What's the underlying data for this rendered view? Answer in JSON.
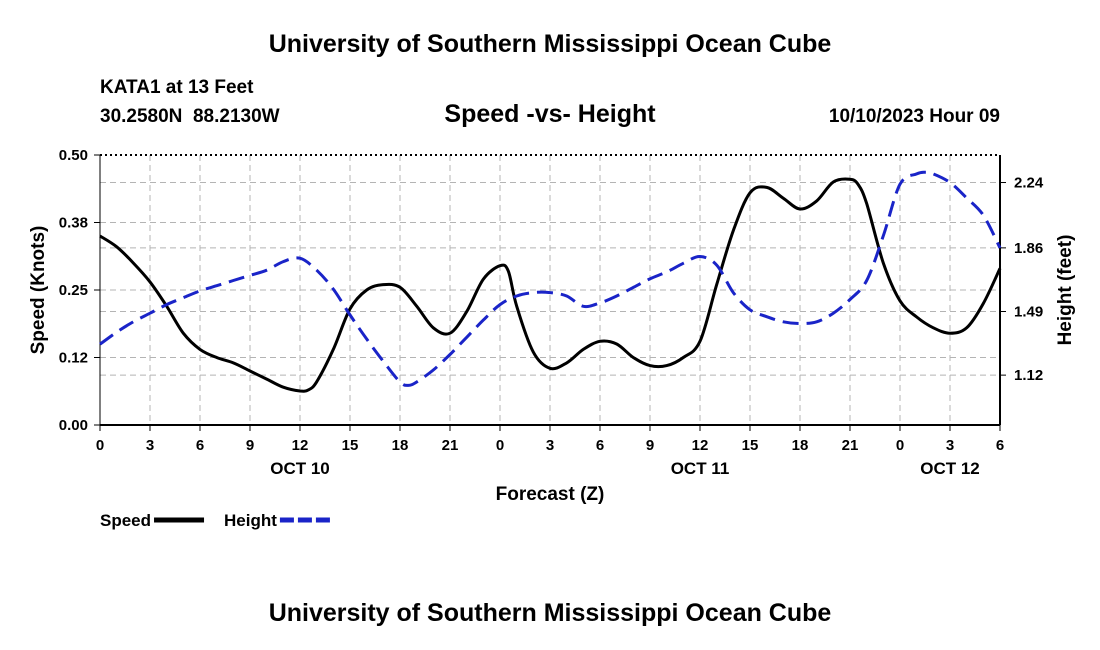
{
  "header": {
    "title": "University of Southern Mississippi Ocean Cube",
    "station": "KATA1 at 13 Feet",
    "coordinates": "30.2580N  88.2130W",
    "subtitle": "Speed -vs- Height",
    "datetime": "10/10/2023 Hour 09",
    "footer_title": "University of Southern Mississippi Ocean Cube"
  },
  "chart_data": {
    "type": "line",
    "xlabel": "Forecast (Z)",
    "ylabel": "Speed (Knots)",
    "y2label": "Height (feet)",
    "xlim": [
      0,
      54
    ],
    "ylim": [
      0,
      0.5
    ],
    "y2lim": [
      0.83,
      2.4
    ],
    "x_ticks": [
      0,
      3,
      6,
      9,
      12,
      15,
      18,
      21,
      24,
      27,
      30,
      33,
      36,
      39,
      42,
      45,
      48,
      51,
      54
    ],
    "x_tick_labels": [
      "0",
      "3",
      "6",
      "9",
      "12",
      "15",
      "18",
      "21",
      "0",
      "3",
      "6",
      "9",
      "12",
      "15",
      "18",
      "21",
      "0",
      "3",
      "6"
    ],
    "y_ticks": [
      0,
      0.125,
      0.25,
      0.375,
      0.5
    ],
    "y_tick_labels": [
      "0.00",
      "0.12",
      "0.25",
      "0.38",
      "0.50"
    ],
    "y2_ticks": [
      1.12,
      1.49,
      1.86,
      2.24
    ],
    "y2_tick_labels": [
      "1.12",
      "1.49",
      "1.86",
      "2.24"
    ],
    "date_labels": [
      {
        "x": 12,
        "label": "OCT 10"
      },
      {
        "x": 36,
        "label": "OCT 11"
      },
      {
        "x": 51,
        "label": "OCT 12"
      }
    ],
    "series": [
      {
        "name": "Speed",
        "axis": "left",
        "color": "#000000",
        "dash": "solid",
        "x": [
          0,
          1,
          2,
          3,
          4,
          5,
          6,
          7,
          8,
          9,
          10,
          11,
          12,
          12.5,
          13,
          14,
          15,
          16,
          17,
          18,
          19,
          20,
          21,
          22,
          23,
          24,
          24.5,
          25,
          26,
          27,
          28,
          29,
          30,
          31,
          32,
          33,
          34,
          35,
          36,
          37,
          38,
          39,
          40,
          41,
          42,
          43,
          44,
          45,
          45.5,
          46,
          47,
          48,
          49,
          50,
          51,
          52,
          53,
          54
        ],
        "values": [
          0.35,
          0.33,
          0.3,
          0.265,
          0.22,
          0.17,
          0.14,
          0.125,
          0.115,
          0.1,
          0.085,
          0.07,
          0.063,
          0.065,
          0.08,
          0.14,
          0.215,
          0.25,
          0.26,
          0.255,
          0.22,
          0.18,
          0.17,
          0.21,
          0.27,
          0.295,
          0.285,
          0.22,
          0.135,
          0.105,
          0.115,
          0.14,
          0.155,
          0.15,
          0.125,
          0.11,
          0.11,
          0.125,
          0.155,
          0.26,
          0.36,
          0.43,
          0.44,
          0.42,
          0.4,
          0.415,
          0.45,
          0.455,
          0.445,
          0.41,
          0.3,
          0.23,
          0.2,
          0.18,
          0.17,
          0.18,
          0.225,
          0.29
        ]
      },
      {
        "name": "Height",
        "axis": "right",
        "color": "#1a24c8",
        "dash": "dashed",
        "x": [
          0,
          1,
          2,
          3,
          4,
          5,
          6,
          7,
          8,
          9,
          10,
          11,
          12,
          13,
          14,
          15,
          16,
          17,
          18,
          18.5,
          19,
          20,
          21,
          22,
          23,
          24,
          25,
          26,
          27,
          28,
          29,
          30,
          31,
          32,
          33,
          34,
          35,
          36,
          37,
          38,
          39,
          40,
          41,
          42,
          43,
          44,
          45,
          46,
          47,
          48,
          49,
          49.5,
          50,
          51,
          52,
          53,
          54
        ],
        "values": [
          1.3,
          1.37,
          1.43,
          1.48,
          1.53,
          1.57,
          1.61,
          1.64,
          1.67,
          1.7,
          1.73,
          1.78,
          1.8,
          1.73,
          1.62,
          1.47,
          1.33,
          1.2,
          1.08,
          1.06,
          1.08,
          1.15,
          1.24,
          1.34,
          1.44,
          1.53,
          1.58,
          1.6,
          1.6,
          1.58,
          1.52,
          1.54,
          1.58,
          1.63,
          1.68,
          1.72,
          1.77,
          1.81,
          1.76,
          1.6,
          1.5,
          1.46,
          1.43,
          1.42,
          1.43,
          1.48,
          1.56,
          1.67,
          1.93,
          2.23,
          2.29,
          2.3,
          2.29,
          2.24,
          2.15,
          2.05,
          1.86
        ]
      }
    ],
    "legend": [
      {
        "label": "Speed",
        "color": "#000000",
        "dash": "solid"
      },
      {
        "label": "Height",
        "color": "#1a24c8",
        "dash": "dashed"
      }
    ]
  }
}
